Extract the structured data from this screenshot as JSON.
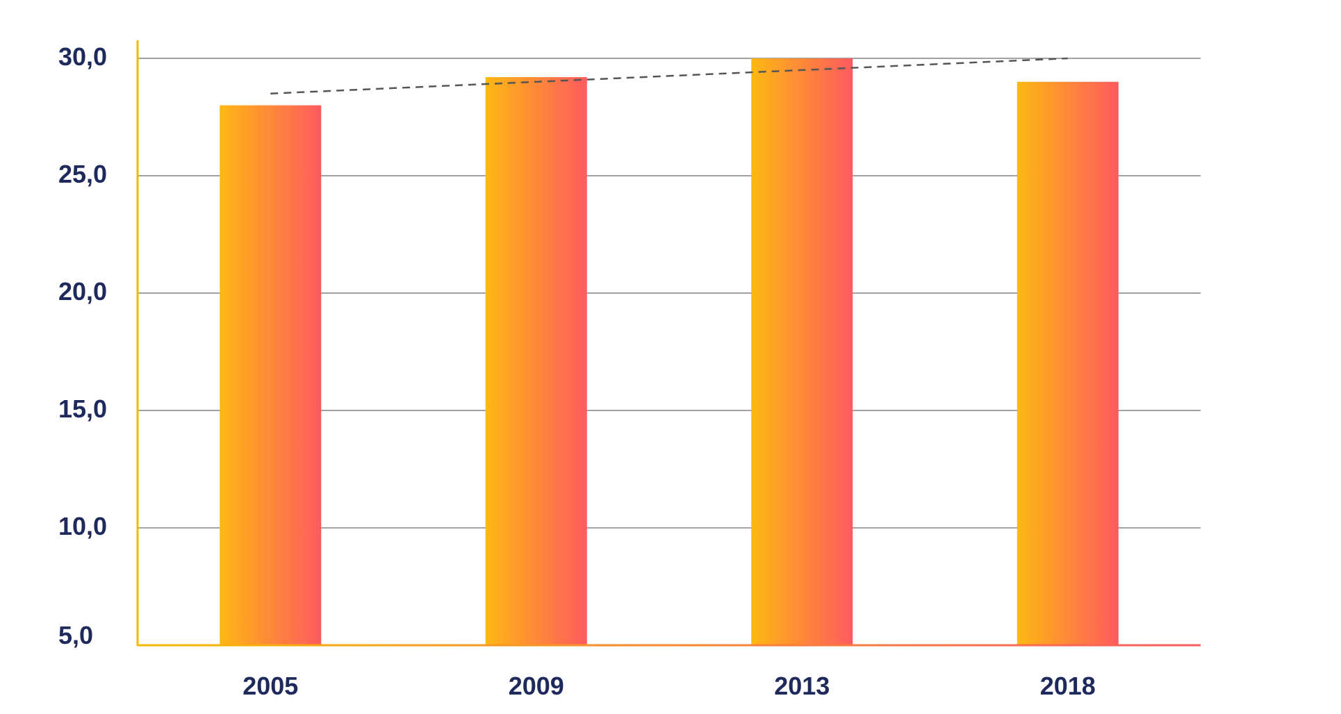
{
  "chart_data": {
    "type": "bar",
    "title": "",
    "xlabel": "",
    "ylabel": "",
    "categories": [
      "2005",
      "2009",
      "2013",
      "2018"
    ],
    "series": [
      {
        "values": [
          28.0,
          29.2,
          30.0,
          29.0
        ]
      }
    ],
    "trendline": {
      "style": "dashed",
      "color": "#555555",
      "start": 28.5,
      "end": 30.0
    },
    "ylim": [
      5.0,
      30.0
    ],
    "yticks": [
      5.0,
      10.0,
      15.0,
      20.0,
      25.0,
      30.0
    ],
    "ytick_labels": [
      "5,0",
      "10,0",
      "15,0",
      "20,0",
      "25,0",
      "30,0"
    ],
    "grid": true,
    "legend": "none",
    "colors": {
      "bar_gradient_start": "#fdb813",
      "bar_gradient_end": "#ff5a5f",
      "axis": "#f5b800",
      "grid": "#6b6b6b",
      "tick_text": "#1f2a5c"
    }
  }
}
